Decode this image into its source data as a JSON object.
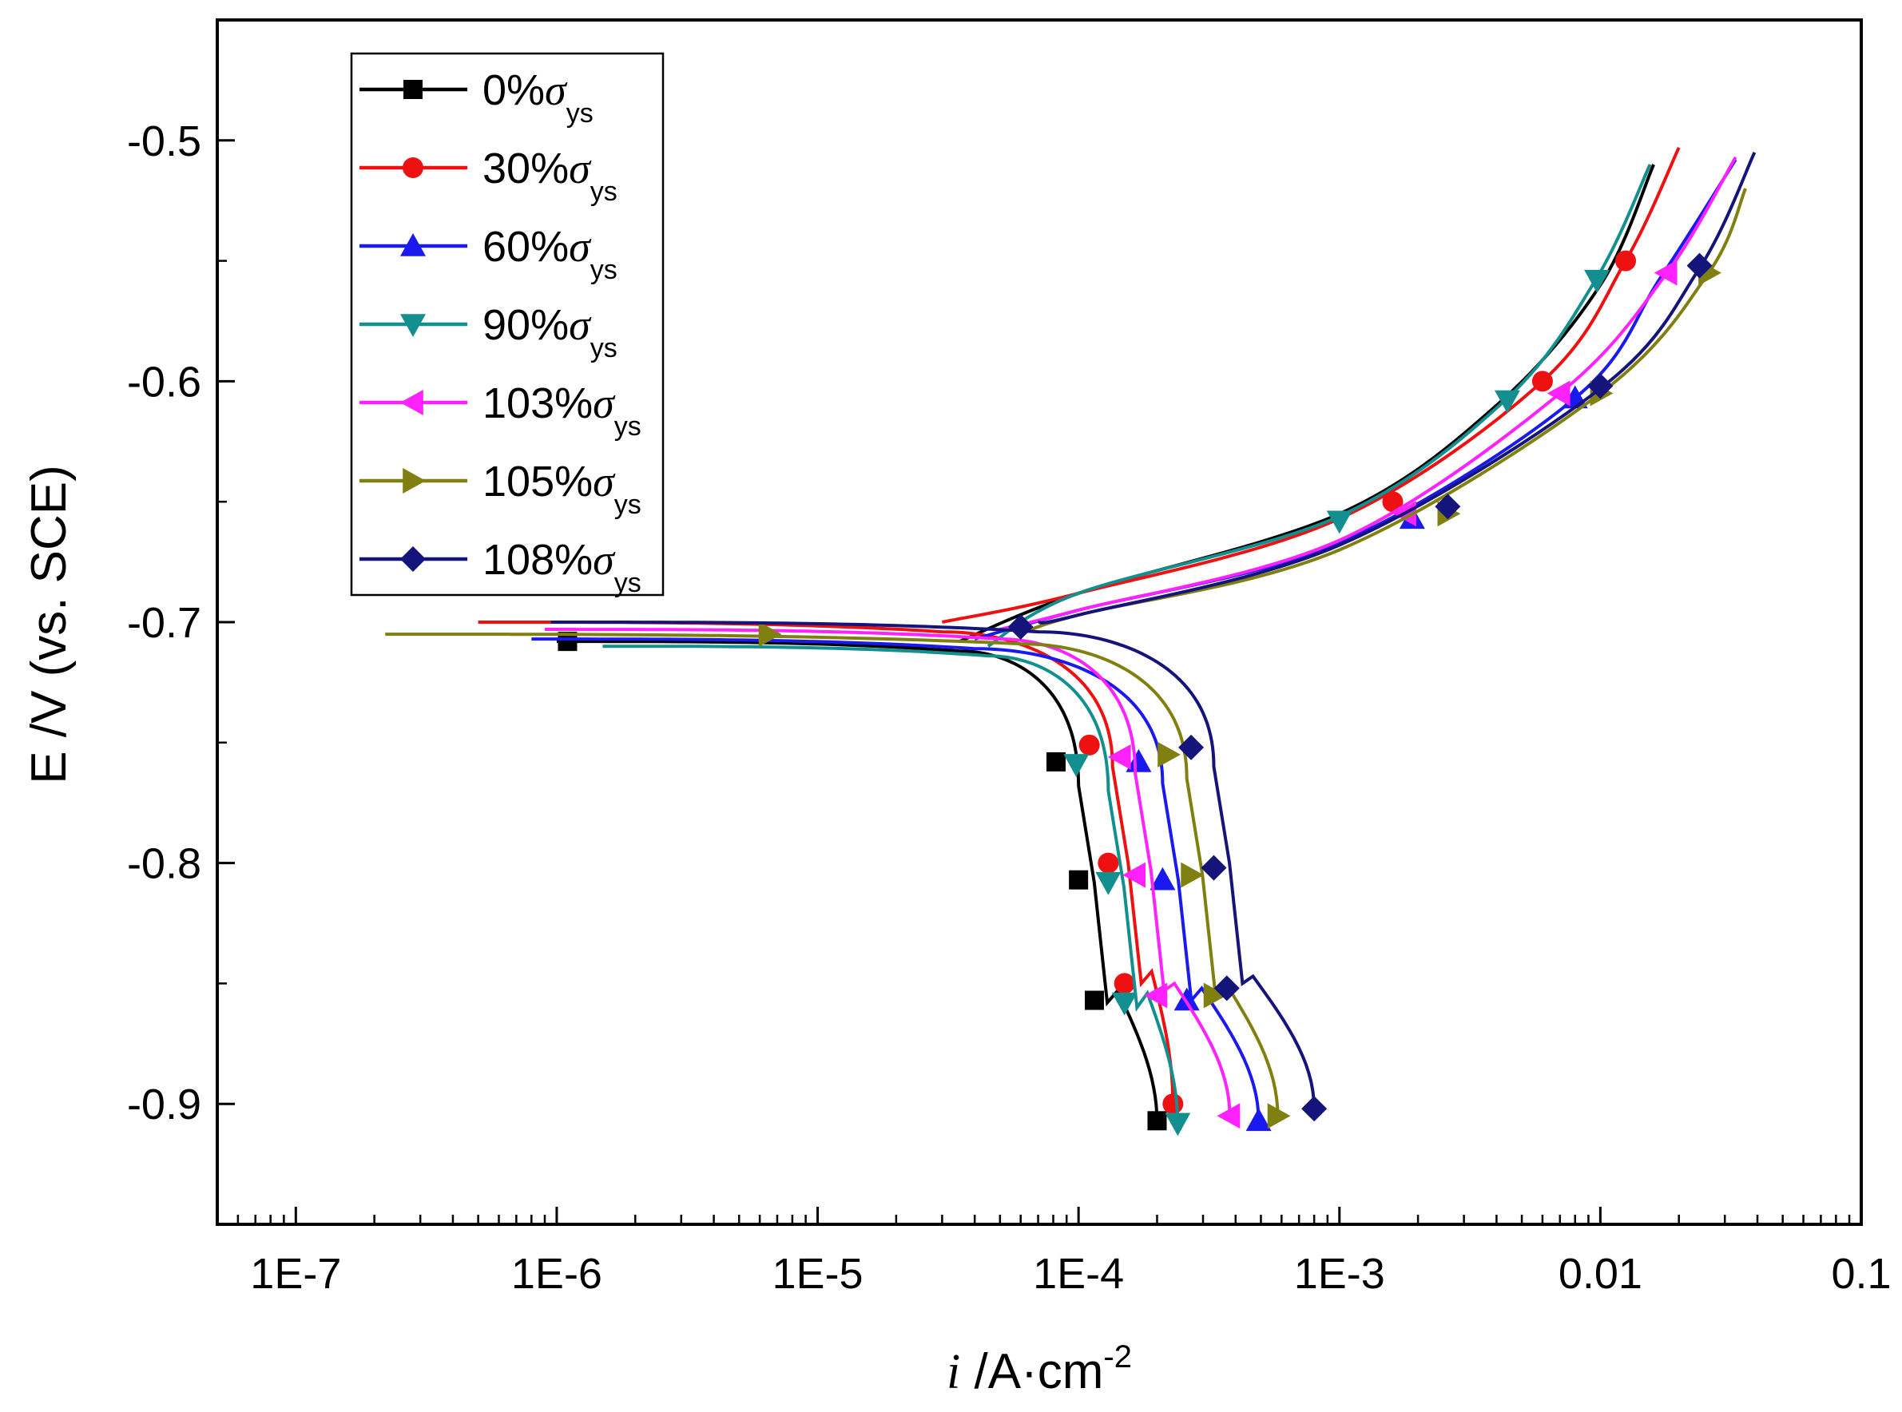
{
  "chart_data": {
    "type": "line",
    "title": "",
    "xlabel": {
      "italic": "i",
      "main": " /A·cm",
      "sup": "-2"
    },
    "ylabel": "E /V (vs. SCE)",
    "xscale": "log",
    "xlim": [
      5e-08,
      0.1
    ],
    "ylim": [
      -0.95,
      -0.45
    ],
    "xticks": [
      {
        "value": 1e-07,
        "label": "1E-7"
      },
      {
        "value": 1e-06,
        "label": "1E-6"
      },
      {
        "value": 1e-05,
        "label": "1E-5"
      },
      {
        "value": 0.0001,
        "label": "1E-4"
      },
      {
        "value": 0.001,
        "label": "1E-3"
      },
      {
        "value": 0.01,
        "label": "0.01"
      },
      {
        "value": 0.1,
        "label": "0.1"
      }
    ],
    "yticks": [
      {
        "value": -0.5,
        "label": "-0.5"
      },
      {
        "value": -0.6,
        "label": "-0.6"
      },
      {
        "value": -0.7,
        "label": "-0.7"
      },
      {
        "value": -0.8,
        "label": "-0.8"
      },
      {
        "value": -0.9,
        "label": "-0.9"
      }
    ],
    "legend": {
      "position": "top-left",
      "sigma": "σ",
      "subscript": "ys"
    },
    "series": [
      {
        "name": "0%",
        "color": "#000000",
        "marker": "square",
        "ecorr": -0.708,
        "icorr": 3.5e-05,
        "ilim": 0.0001,
        "anodic": [
          [
            0.0001,
            -0.688
          ],
          [
            0.001,
            -0.655
          ],
          [
            0.004,
            -0.61
          ],
          [
            0.01,
            -0.56
          ],
          [
            0.016,
            -0.51
          ]
        ],
        "cathodic_start": 1e-06,
        "cathodic_end": [
          0.0002,
          -0.908
        ],
        "markers": [
          [
            1.1e-06,
            -0.708
          ],
          [
            8.2e-05,
            -0.758
          ],
          [
            0.0001,
            -0.807
          ],
          [
            0.000115,
            -0.857
          ],
          [
            0.0002,
            -0.907
          ]
        ]
      },
      {
        "name": "30%",
        "color": "#ee1111",
        "marker": "circle",
        "ecorr": -0.7,
        "icorr": 3e-05,
        "ilim": 0.000135,
        "anodic": [
          [
            0.0001,
            -0.688
          ],
          [
            0.001,
            -0.657
          ],
          [
            0.006,
            -0.6
          ],
          [
            0.0125,
            -0.55
          ],
          [
            0.02,
            -0.503
          ]
        ],
        "cathodic_start": 5e-07,
        "cathodic_end": [
          0.00023,
          -0.9
        ],
        "markers": [
          [
            0.00011,
            -0.751
          ],
          [
            0.00013,
            -0.8
          ],
          [
            0.00015,
            -0.85
          ],
          [
            0.00023,
            -0.9
          ],
          [
            0.0016,
            -0.65
          ],
          [
            0.006,
            -0.6
          ],
          [
            0.0125,
            -0.55
          ]
        ]
      },
      {
        "name": "60%",
        "color": "#1a1aee",
        "marker": "triangle-up",
        "ecorr": -0.707,
        "icorr": 4e-05,
        "ilim": 0.00021,
        "anodic": [
          [
            0.0001,
            -0.695
          ],
          [
            0.001,
            -0.667
          ],
          [
            0.008,
            -0.607
          ],
          [
            0.017,
            -0.557
          ],
          [
            0.033,
            -0.508
          ]
        ],
        "cathodic_start": 8e-07,
        "cathodic_end": [
          0.00049,
          -0.907
        ],
        "markers": [
          [
            0.00017,
            -0.758
          ],
          [
            0.00021,
            -0.807
          ],
          [
            0.00026,
            -0.857
          ],
          [
            0.00049,
            -0.907
          ],
          [
            0.0019,
            -0.657
          ],
          [
            0.008,
            -0.607
          ]
        ]
      },
      {
        "name": "90%",
        "color": "#138f8f",
        "marker": "triangle-down",
        "ecorr": -0.71,
        "icorr": 4.5e-05,
        "ilim": 0.00013,
        "anodic": [
          [
            0.0001,
            -0.688
          ],
          [
            0.001,
            -0.656
          ],
          [
            0.0044,
            -0.607
          ],
          [
            0.0097,
            -0.557
          ],
          [
            0.0155,
            -0.51
          ]
        ],
        "cathodic_start": 1.5e-06,
        "cathodic_end": [
          0.00024,
          -0.909
        ],
        "markers": [
          [
            9.8e-05,
            -0.759
          ],
          [
            0.00013,
            -0.808
          ],
          [
            0.00015,
            -0.858
          ],
          [
            0.00024,
            -0.908
          ],
          [
            0.001,
            -0.658
          ],
          [
            0.0044,
            -0.608
          ],
          [
            0.0097,
            -0.558
          ]
        ]
      },
      {
        "name": "103%",
        "color": "#ff22ff",
        "marker": "triangle-left",
        "ecorr": -0.703,
        "icorr": 5e-05,
        "ilim": 0.000165,
        "anodic": [
          [
            0.0001,
            -0.695
          ],
          [
            0.001,
            -0.666
          ],
          [
            0.007,
            -0.605
          ],
          [
            0.018,
            -0.555
          ],
          [
            0.033,
            -0.507
          ]
        ],
        "cathodic_start": 9e-07,
        "cathodic_end": [
          0.00038,
          -0.905
        ],
        "markers": [
          [
            0.000145,
            -0.756
          ],
          [
            0.000165,
            -0.805
          ],
          [
            0.0002,
            -0.855
          ],
          [
            0.00038,
            -0.905
          ],
          [
            0.0018,
            -0.655
          ],
          [
            0.007,
            -0.605
          ],
          [
            0.018,
            -0.555
          ]
        ]
      },
      {
        "name": "105%",
        "color": "#808010",
        "marker": "triangle-right",
        "ecorr": -0.705,
        "icorr": 6e-05,
        "ilim": 0.00026,
        "anodic": [
          [
            0.0001,
            -0.697
          ],
          [
            0.001,
            -0.67
          ],
          [
            0.01,
            -0.605
          ],
          [
            0.026,
            -0.555
          ],
          [
            0.036,
            -0.52
          ]
        ],
        "cathodic_start": 2.2e-07,
        "cathodic_end": [
          0.00058,
          -0.905
        ],
        "markers": [
          [
            6.5e-06,
            -0.705
          ],
          [
            0.00022,
            -0.755
          ],
          [
            0.00027,
            -0.805
          ],
          [
            0.00033,
            -0.855
          ],
          [
            0.00058,
            -0.905
          ],
          [
            0.0026,
            -0.655
          ],
          [
            0.01,
            -0.605
          ],
          [
            0.026,
            -0.555
          ]
        ]
      },
      {
        "name": "108%",
        "color": "#14147a",
        "marker": "diamond",
        "ecorr": -0.7,
        "icorr": 7e-05,
        "ilim": 0.00033,
        "anodic": [
          [
            0.0001,
            -0.697
          ],
          [
            0.001,
            -0.668
          ],
          [
            0.01,
            -0.603
          ],
          [
            0.024,
            -0.553
          ],
          [
            0.039,
            -0.505
          ]
        ],
        "cathodic_start": 9.5e-07,
        "cathodic_end": [
          0.0008,
          -0.902
        ],
        "markers": [
          [
            6e-05,
            -0.702
          ],
          [
            0.00027,
            -0.752
          ],
          [
            0.00033,
            -0.802
          ],
          [
            0.00037,
            -0.852
          ],
          [
            0.0008,
            -0.902
          ],
          [
            0.0026,
            -0.652
          ],
          [
            0.01,
            -0.602
          ],
          [
            0.024,
            -0.552
          ]
        ]
      }
    ]
  }
}
